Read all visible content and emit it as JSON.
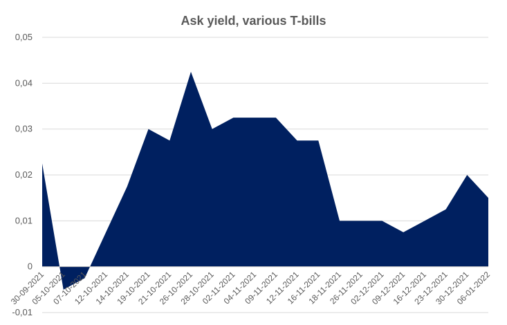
{
  "chart_data": {
    "type": "area",
    "title": "Ask yield, various T-bills",
    "xlabel": "",
    "ylabel": "",
    "ylim": [
      -0.01,
      0.05
    ],
    "yticks": [
      -0.01,
      0,
      0.01,
      0.02,
      0.03,
      0.04,
      0.05
    ],
    "ytick_labels": [
      "-0,01",
      "0",
      "0,01",
      "0,02",
      "0,03",
      "0,04",
      "0,05"
    ],
    "grid": true,
    "legend": "none",
    "color": "#002060",
    "categories": [
      "30-09-2021",
      "05-10-2021",
      "07-10-2021",
      "12-10-2021",
      "14-10-2021",
      "19-10-2021",
      "21-10-2021",
      "26-10-2021",
      "28-10-2021",
      "02-11-2021",
      "04-11-2021",
      "09-11-2021",
      "12-11-2021",
      "16-11-2021",
      "18-11-2021",
      "26-11-2021",
      "02-12-2021",
      "09-12-2021",
      "16-12-2021",
      "23-12-2021",
      "30-12-2021",
      "06-01-2022"
    ],
    "series": [
      {
        "values": [
          0.0225,
          -0.005,
          -0.0025,
          0.0075,
          0.0175,
          0.03,
          0.0275,
          0.0425,
          0.03,
          0.0325,
          0.0325,
          0.0325,
          0.0275,
          0.0275,
          0.01,
          0.01,
          0.01,
          0.0075,
          0.01,
          0.0125,
          0.02,
          0.015
        ]
      }
    ]
  }
}
